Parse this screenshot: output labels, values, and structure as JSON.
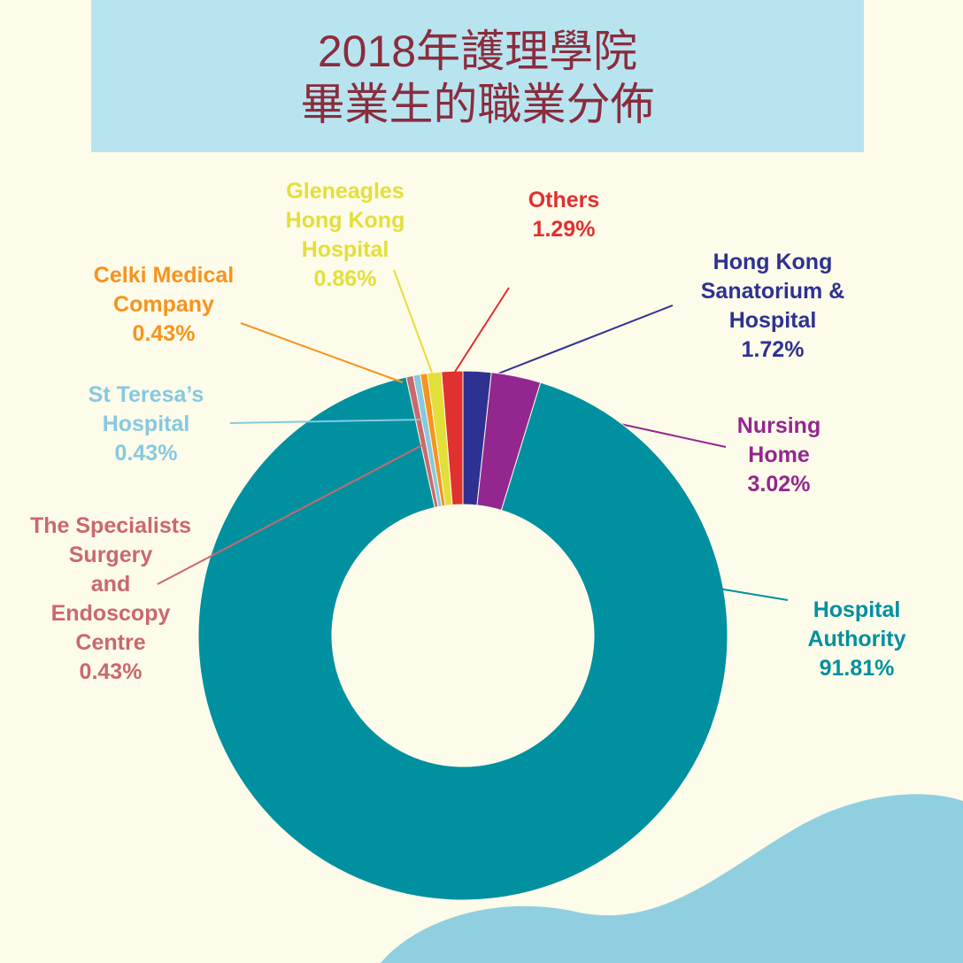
{
  "chart_data": {
    "type": "donut",
    "title": "2018年護理學院\n畢業生的職業分佈",
    "categories": [
      "Hong Kong\nSanatorium &\nHospital",
      "Nursing\nHome",
      "Hospital\nAuthority",
      "The Specialists\nSurgery\nand\nEndoscopy\nCentre",
      "St Teresa’s\nHospital",
      "Celki Medical\nCompany",
      "Gleneagles\nHong Kong\nHospital",
      "Others"
    ],
    "values": [
      1.72,
      3.02,
      91.81,
      0.43,
      0.43,
      0.43,
      0.86,
      1.29
    ],
    "value_labels": [
      "1.72%",
      "3.02%",
      "91.81%",
      "0.43%",
      "0.43%",
      "0.43%",
      "0.86%",
      "1.29%"
    ],
    "colors": [
      "#2e3192",
      "#93278f",
      "#0090a0",
      "#c9686f",
      "#86c9e0",
      "#f7931e",
      "#e3df3a",
      "#e0302f"
    ]
  }
}
